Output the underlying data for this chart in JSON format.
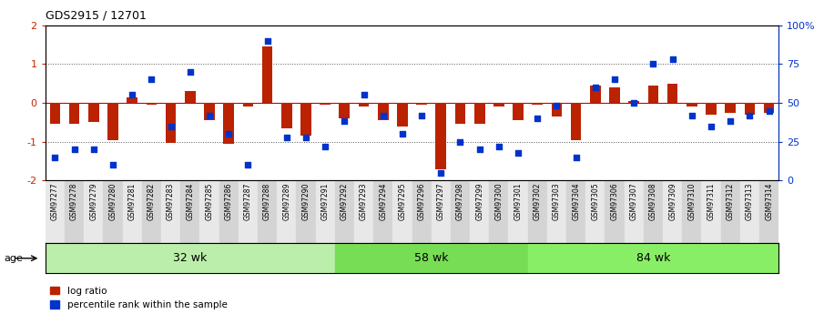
{
  "title": "GDS2915 / 12701",
  "samples": [
    "GSM97277",
    "GSM97278",
    "GSM97279",
    "GSM97280",
    "GSM97281",
    "GSM97282",
    "GSM97283",
    "GSM97284",
    "GSM97285",
    "GSM97286",
    "GSM97287",
    "GSM97288",
    "GSM97289",
    "GSM97290",
    "GSM97291",
    "GSM97292",
    "GSM97293",
    "GSM97294",
    "GSM97295",
    "GSM97296",
    "GSM97297",
    "GSM97298",
    "GSM97299",
    "GSM97300",
    "GSM97301",
    "GSM97302",
    "GSM97303",
    "GSM97304",
    "GSM97305",
    "GSM97306",
    "GSM97307",
    "GSM97308",
    "GSM97309",
    "GSM97310",
    "GSM97311",
    "GSM97312",
    "GSM97313",
    "GSM97314"
  ],
  "log_ratio": [
    -0.55,
    -0.55,
    -0.5,
    -0.95,
    0.15,
    -0.05,
    -1.02,
    0.3,
    -0.45,
    -1.05,
    -0.1,
    1.45,
    -0.65,
    -0.85,
    -0.05,
    -0.4,
    -0.1,
    -0.45,
    -0.6,
    -0.05,
    -1.7,
    -0.55,
    -0.55,
    -0.1,
    -0.45,
    -0.05,
    -0.35,
    -0.95,
    0.45,
    0.4,
    0.05,
    0.45,
    0.5,
    -0.1,
    -0.3,
    -0.25,
    -0.3,
    -0.25
  ],
  "percentile": [
    15,
    20,
    20,
    10,
    55,
    65,
    35,
    70,
    42,
    30,
    10,
    90,
    28,
    28,
    22,
    38,
    55,
    42,
    30,
    42,
    5,
    25,
    20,
    22,
    18,
    40,
    48,
    15,
    60,
    65,
    50,
    75,
    78,
    42,
    35,
    38,
    42,
    45
  ],
  "groups": [
    {
      "label": "32 wk",
      "start": 0,
      "end": 15,
      "color": "#bbeeaa"
    },
    {
      "label": "58 wk",
      "start": 15,
      "end": 25,
      "color": "#77dd55"
    },
    {
      "label": "84 wk",
      "start": 25,
      "end": 38,
      "color": "#88ee66"
    }
  ],
  "bar_color": "#bb2200",
  "scatter_color": "#0033cc",
  "bg_color": "#ffffff",
  "ylim_left": [
    -2,
    2
  ],
  "yticks_left": [
    -2,
    -1,
    0,
    1,
    2
  ],
  "ylim_right": [
    0,
    100
  ],
  "yticks_right": [
    0,
    25,
    50,
    75,
    100
  ],
  "ytick_labels_right": [
    "0",
    "25",
    "50",
    "75",
    "100%"
  ],
  "hline_color": "#cc0000",
  "dotted_color": "#555555",
  "age_label": "age",
  "legend1": "log ratio",
  "legend2": "percentile rank within the sample",
  "xlabel_bg_odd": "#d4d4d4",
  "xlabel_bg_even": "#e8e8e8"
}
